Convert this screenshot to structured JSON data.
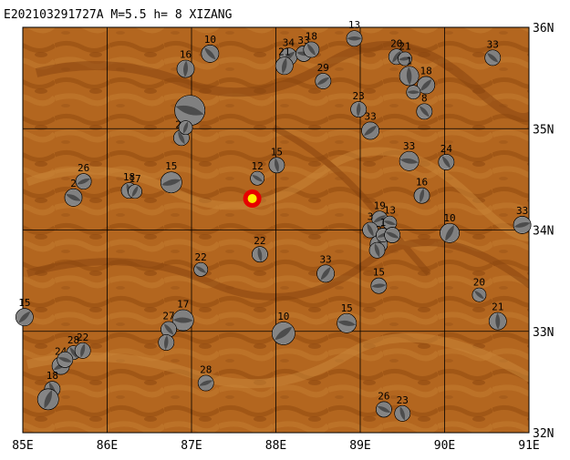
{
  "header": {
    "title": "E202103291727A  M=5.5  h=   8  XIZANG"
  },
  "axes": {
    "lon_labels": [
      "85E",
      "86E",
      "87E",
      "88E",
      "89E",
      "90E",
      "91E"
    ],
    "lat_labels": [
      "36N",
      "35N",
      "34N",
      "33N",
      "32N"
    ],
    "lon_range": [
      85,
      91
    ],
    "lat_range": [
      32,
      36
    ]
  },
  "colors": {
    "terrain": "#b3661f",
    "terrain_dark": "#9a5212",
    "terrain_light": "#c27a2e",
    "event_marker": "#e60000",
    "event_star": "#ffee00"
  },
  "main_event": {
    "lon": 87.72,
    "lat": 34.31,
    "depth": 8
  },
  "mechanisms": [
    {
      "depth": "13",
      "lon": 88.93,
      "lat": 35.89,
      "size": 8
    },
    {
      "depth": "10",
      "lon": 87.22,
      "lat": 35.74,
      "size": 9
    },
    {
      "depth": "16",
      "lon": 86.93,
      "lat": 35.59,
      "size": 9
    },
    {
      "depth": "34",
      "lon": 88.15,
      "lat": 35.71,
      "size": 9
    },
    {
      "depth": "33",
      "lon": 88.33,
      "lat": 35.74,
      "size": 8
    },
    {
      "depth": "18",
      "lon": 88.42,
      "lat": 35.78,
      "size": 8
    },
    {
      "depth": "21",
      "lon": 88.1,
      "lat": 35.62,
      "size": 9
    },
    {
      "depth": "29",
      "lon": 88.56,
      "lat": 35.47,
      "size": 8
    },
    {
      "depth": "",
      "lon": 86.98,
      "lat": 35.18,
      "size": 16
    },
    {
      "depth": "29",
      "lon": 86.88,
      "lat": 34.91,
      "size": 8
    },
    {
      "depth": "",
      "lon": 86.93,
      "lat": 35.01,
      "size": 7
    },
    {
      "depth": "26",
      "lon": 85.72,
      "lat": 34.48,
      "size": 8
    },
    {
      "depth": "2",
      "lon": 85.6,
      "lat": 34.32,
      "size": 9
    },
    {
      "depth": "18",
      "lon": 86.26,
      "lat": 34.39,
      "size": 8
    },
    {
      "depth": "17",
      "lon": 86.33,
      "lat": 34.38,
      "size": 7
    },
    {
      "depth": "15",
      "lon": 86.76,
      "lat": 34.47,
      "size": 11
    },
    {
      "depth": "12",
      "lon": 87.78,
      "lat": 34.51,
      "size": 7
    },
    {
      "depth": "15",
      "lon": 88.01,
      "lat": 34.64,
      "size": 8
    },
    {
      "depth": "20",
      "lon": 89.43,
      "lat": 35.71,
      "size": 8
    },
    {
      "depth": "21",
      "lon": 89.53,
      "lat": 35.69,
      "size": 7
    },
    {
      "depth": "33",
      "lon": 90.57,
      "lat": 35.7,
      "size": 8
    },
    {
      "depth": "1",
      "lon": 89.58,
      "lat": 35.52,
      "size": 10
    },
    {
      "depth": "18",
      "lon": 89.78,
      "lat": 35.43,
      "size": 9
    },
    {
      "depth": "",
      "lon": 89.63,
      "lat": 35.36,
      "size": 7
    },
    {
      "depth": "8",
      "lon": 89.76,
      "lat": 35.17,
      "size": 8
    },
    {
      "depth": "23",
      "lon": 88.98,
      "lat": 35.19,
      "size": 8
    },
    {
      "depth": "33",
      "lon": 89.12,
      "lat": 34.98,
      "size": 9
    },
    {
      "depth": "33",
      "lon": 89.58,
      "lat": 34.68,
      "size": 10
    },
    {
      "depth": "24",
      "lon": 90.02,
      "lat": 34.67,
      "size": 8
    },
    {
      "depth": "16",
      "lon": 89.73,
      "lat": 34.34,
      "size": 8
    },
    {
      "depth": "19",
      "lon": 89.23,
      "lat": 34.11,
      "size": 8
    },
    {
      "depth": "13",
      "lon": 89.35,
      "lat": 34.07,
      "size": 7
    },
    {
      "depth": "3",
      "lon": 89.12,
      "lat": 34.0,
      "size": 8
    },
    {
      "depth": "2",
      "lon": 89.22,
      "lat": 33.86,
      "size": 9
    },
    {
      "depth": "1",
      "lon": 89.27,
      "lat": 33.95,
      "size": 7
    },
    {
      "depth": "",
      "lon": 89.38,
      "lat": 33.95,
      "size": 8
    },
    {
      "depth": "",
      "lon": 89.2,
      "lat": 33.8,
      "size": 8
    },
    {
      "depth": "10",
      "lon": 90.06,
      "lat": 33.97,
      "size": 10
    },
    {
      "depth": "33",
      "lon": 90.92,
      "lat": 34.05,
      "size": 9
    },
    {
      "depth": "22",
      "lon": 87.11,
      "lat": 33.61,
      "size": 7
    },
    {
      "depth": "22",
      "lon": 87.81,
      "lat": 33.76,
      "size": 8
    },
    {
      "depth": "33",
      "lon": 88.59,
      "lat": 33.57,
      "size": 9
    },
    {
      "depth": "15",
      "lon": 89.22,
      "lat": 33.45,
      "size": 8
    },
    {
      "depth": "20",
      "lon": 90.41,
      "lat": 33.36,
      "size": 7
    },
    {
      "depth": "21",
      "lon": 90.63,
      "lat": 33.1,
      "size": 9
    },
    {
      "depth": "15",
      "lon": 85.02,
      "lat": 33.14,
      "size": 9
    },
    {
      "depth": "17",
      "lon": 86.9,
      "lat": 33.11,
      "size": 11
    },
    {
      "depth": "27",
      "lon": 86.73,
      "lat": 33.02,
      "size": 8
    },
    {
      "depth": "",
      "lon": 86.7,
      "lat": 32.89,
      "size": 8
    },
    {
      "depth": "10",
      "lon": 88.09,
      "lat": 32.98,
      "size": 12
    },
    {
      "depth": "15",
      "lon": 88.84,
      "lat": 33.08,
      "size": 10
    },
    {
      "depth": "28",
      "lon": 85.6,
      "lat": 32.79,
      "size": 7
    },
    {
      "depth": "22",
      "lon": 85.71,
      "lat": 32.81,
      "size": 8
    },
    {
      "depth": "24",
      "lon": 85.45,
      "lat": 32.66,
      "size": 9
    },
    {
      "depth": "",
      "lon": 85.5,
      "lat": 32.72,
      "size": 8
    },
    {
      "depth": "18",
      "lon": 85.35,
      "lat": 32.43,
      "size": 8
    },
    {
      "depth": "",
      "lon": 85.3,
      "lat": 32.33,
      "size": 11
    },
    {
      "depth": "28",
      "lon": 87.17,
      "lat": 32.49,
      "size": 8
    },
    {
      "depth": "26",
      "lon": 89.28,
      "lat": 32.23,
      "size": 8
    },
    {
      "depth": "23",
      "lon": 89.5,
      "lat": 32.19,
      "size": 8
    }
  ]
}
